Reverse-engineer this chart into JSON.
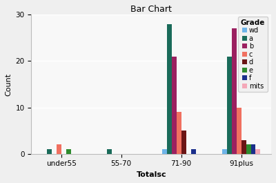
{
  "title": "Bar Chart",
  "xlabel": "Totalsc",
  "ylabel": "Count",
  "categories": [
    "under55",
    "55-70",
    "71-90",
    "91plus"
  ],
  "grades": [
    "wd",
    "a",
    "b",
    "c",
    "d",
    "e",
    "f",
    "mits"
  ],
  "colors": {
    "wd": "#6EB4E8",
    "a": "#1A6B5A",
    "b": "#9B2060",
    "c": "#F07060",
    "d": "#6B1515",
    "e": "#2E8B2E",
    "f": "#1A2E8B",
    "mits": "#F4A8B8"
  },
  "data": {
    "wd": [
      0,
      0,
      1,
      1
    ],
    "a": [
      1,
      1,
      28,
      21
    ],
    "b": [
      0,
      0,
      21,
      27
    ],
    "c": [
      2,
      0,
      9,
      10
    ],
    "d": [
      0,
      0,
      5,
      3
    ],
    "e": [
      1,
      0,
      0,
      2
    ],
    "f": [
      0,
      0,
      1,
      2
    ],
    "mits": [
      0,
      0,
      0,
      1
    ]
  },
  "ylim": [
    0,
    30
  ],
  "yticks": [
    0,
    10,
    20,
    30
  ],
  "bg_color": "#EFEFEF",
  "plot_bg": "#F8F8F8",
  "title_fontsize": 9,
  "axis_label_fontsize": 8,
  "tick_fontsize": 7.5,
  "legend_fontsize": 7,
  "legend_title_fontsize": 7.5
}
